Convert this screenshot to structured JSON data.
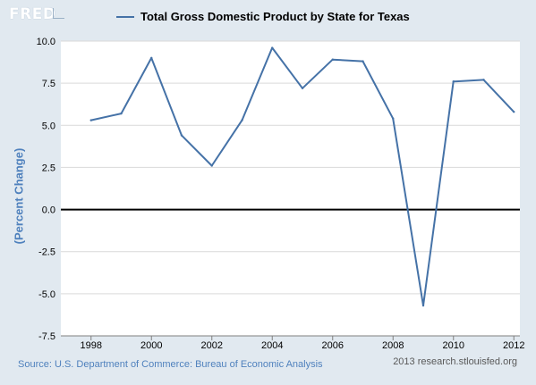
{
  "logo": {
    "text": "FRED"
  },
  "legend": {
    "label": "Total Gross Domestic Product by State for Texas"
  },
  "footer": {
    "source": "Source: U.S. Department of Commerce: Bureau of Economic Analysis",
    "credit": "2013 research.stlouisfed.org"
  },
  "colors": {
    "series": "#4572a7",
    "axis_label": "#4f81bd",
    "background": "#e1e9f0",
    "plot": "#ffffff",
    "grid": "#d9d9d9",
    "zero_line": "#000000"
  },
  "chart_data": {
    "type": "line",
    "title": "",
    "xlabel": "",
    "ylabel": "(Percent Change)",
    "xlim": [
      1997,
      2012.2
    ],
    "ylim": [
      -7.5,
      10.0
    ],
    "x_ticks": [
      "1998",
      "2000",
      "2002",
      "2004",
      "2006",
      "2008",
      "2010",
      "2012"
    ],
    "y_ticks": [
      "10.0",
      "7.5",
      "5.0",
      "2.5",
      "0.0",
      "-2.5",
      "-5.0",
      "-7.5"
    ],
    "grid": "horizontal",
    "legend_position": "top-center",
    "series": [
      {
        "name": "Total Gross Domestic Product by State for Texas",
        "x": [
          1998,
          1999,
          2000,
          2001,
          2002,
          2003,
          2004,
          2005,
          2006,
          2007,
          2008,
          2009,
          2010,
          2011,
          2012
        ],
        "values": [
          5.3,
          5.7,
          9.0,
          4.4,
          2.6,
          5.3,
          9.6,
          7.2,
          8.9,
          8.8,
          5.4,
          -5.7,
          7.6,
          7.7,
          5.8
        ]
      }
    ]
  }
}
